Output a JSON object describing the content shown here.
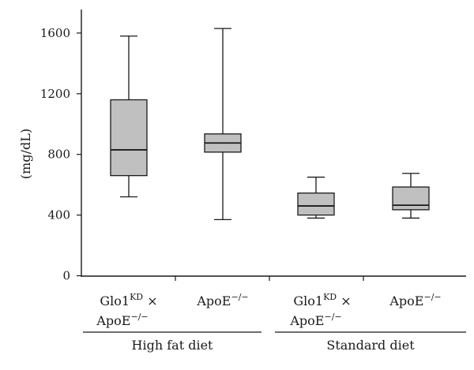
{
  "chart_data": {
    "type": "box",
    "ylabel": "(mg/dL)",
    "ylim": [
      0,
      1750
    ],
    "yticks": [
      "0",
      "400",
      "800",
      "1200",
      "1600"
    ],
    "ytick_values": [
      0,
      400,
      800,
      1200,
      1600
    ],
    "box_fill": "#c0c0c0",
    "categories": [
      {
        "main": "Glo1",
        "sup": "KD",
        "suffix": " ×",
        "line2": "ApoE",
        "line2_sup": "−/−"
      },
      {
        "main": "ApoE",
        "sup": "−/−",
        "suffix": "",
        "line2": "",
        "line2_sup": ""
      },
      {
        "main": "Glo1",
        "sup": "KD",
        "suffix": " ×",
        "line2": "ApoE",
        "line2_sup": "−/−"
      },
      {
        "main": "ApoE",
        "sup": "−/−",
        "suffix": "",
        "line2": "",
        "line2_sup": ""
      }
    ],
    "groups": [
      {
        "label": "High fat diet",
        "members": [
          0,
          1
        ]
      },
      {
        "label": "Standard diet",
        "members": [
          2,
          3
        ]
      }
    ],
    "boxes": [
      {
        "min": 520,
        "q1": 660,
        "median": 830,
        "q3": 1160,
        "max": 1580
      },
      {
        "min": 370,
        "q1": 815,
        "median": 875,
        "q3": 935,
        "max": 1630
      },
      {
        "min": 380,
        "q1": 400,
        "median": 460,
        "q3": 545,
        "max": 650
      },
      {
        "min": 380,
        "q1": 435,
        "median": 465,
        "q3": 585,
        "max": 675
      }
    ]
  }
}
